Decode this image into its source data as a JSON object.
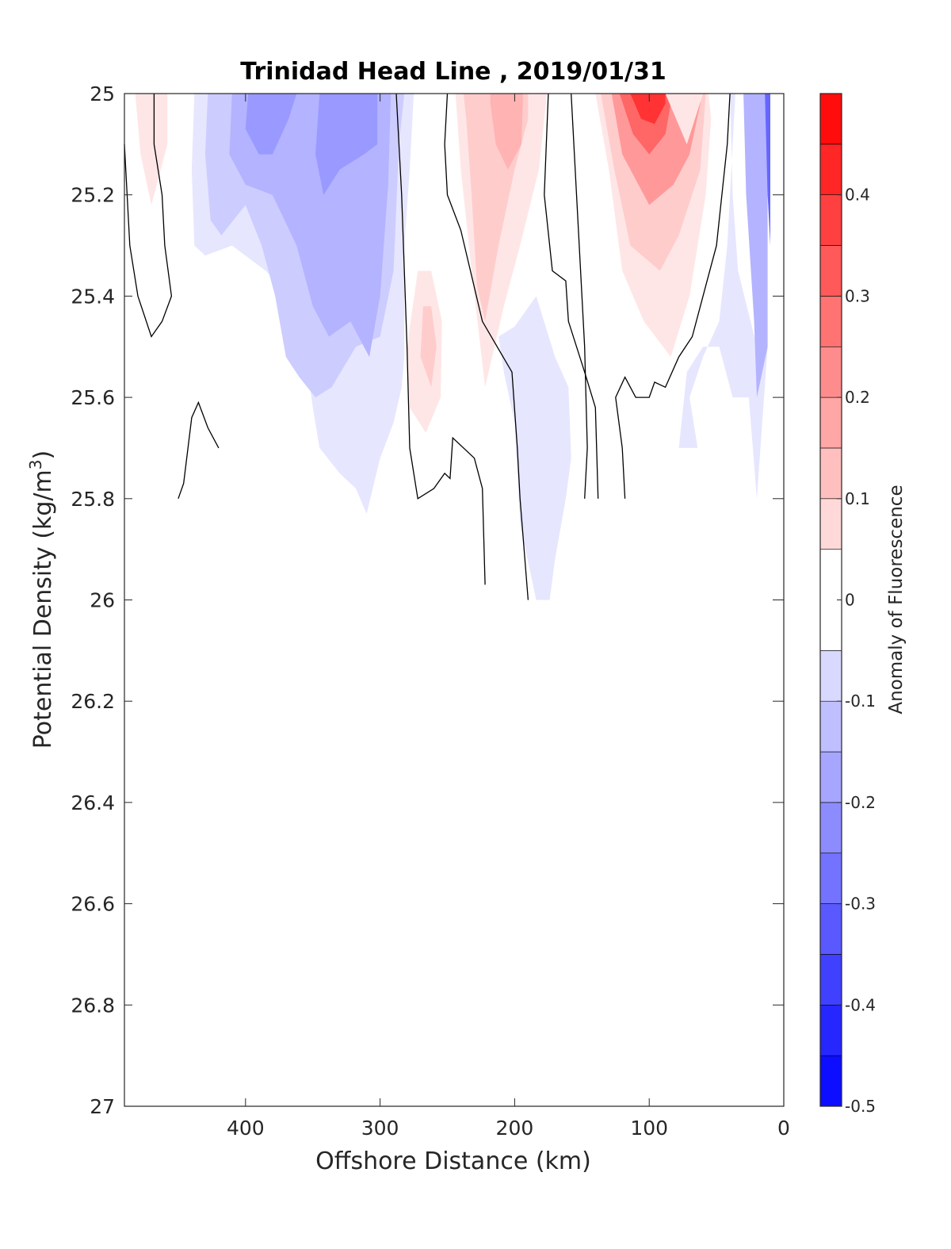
{
  "chart_data": {
    "type": "contourf",
    "title": "Trinidad Head Line , 2019/01/31",
    "xlabel": "Offshore Distance (km)",
    "ylabel_main": "Potential Density (kg/m",
    "ylabel_sup": "3",
    "ylabel_end": ")",
    "x_axis": {
      "ticks": [
        400,
        300,
        200,
        100,
        0
      ],
      "tick_labels": [
        "400",
        "300",
        "200",
        "100",
        "0"
      ],
      "range": [
        490,
        0
      ],
      "reversed": true
    },
    "y_axis": {
      "ticks": [
        25,
        25.2,
        25.4,
        25.6,
        25.8,
        26,
        26.2,
        26.4,
        26.6,
        26.8,
        27
      ],
      "tick_labels": [
        "25",
        "25.2",
        "25.4",
        "25.6",
        "25.8",
        "26",
        "26.2",
        "26.4",
        "26.6",
        "26.8",
        "27"
      ],
      "range": [
        25,
        27
      ],
      "reversed": true
    },
    "colorbar": {
      "label": "Anomaly of Fluorescence",
      "range": [
        -0.5,
        0.5
      ],
      "ticks": [
        0.4,
        0.3,
        0.2,
        0.1,
        0,
        -0.1,
        -0.2,
        -0.3,
        -0.4,
        -0.5
      ],
      "tick_labels": [
        "0.4",
        "0.3",
        "0.2",
        "0.1",
        "0",
        "-0.1",
        "-0.2",
        "-0.3",
        "-0.4",
        "-0.5"
      ],
      "levels": [
        -0.5,
        -0.45,
        -0.4,
        -0.35,
        -0.3,
        -0.25,
        -0.2,
        -0.15,
        -0.1,
        -0.05,
        0.05,
        0.1,
        0.15,
        0.2,
        0.25,
        0.3,
        0.35,
        0.4,
        0.45,
        0.5
      ],
      "colormap": "blue-white-red"
    },
    "filled_regions": [
      {
        "level": 0.05,
        "points": [
          [
            482,
            25
          ],
          [
            458,
            25
          ],
          [
            458,
            25.1
          ],
          [
            470,
            25.22
          ],
          [
            478,
            25.12
          ]
        ]
      },
      {
        "level": -0.05,
        "points": [
          [
            438,
            25
          ],
          [
            440,
            25.15
          ],
          [
            438,
            25.3
          ],
          [
            430,
            25.32
          ],
          [
            410,
            25.3
          ],
          [
            385,
            25.35
          ],
          [
            360,
            25.42
          ],
          [
            350,
            25.62
          ],
          [
            345,
            25.7
          ],
          [
            330,
            25.75
          ],
          [
            318,
            25.78
          ],
          [
            310,
            25.83
          ],
          [
            300,
            25.72
          ],
          [
            290,
            25.65
          ],
          [
            284,
            25.58
          ],
          [
            282,
            25.52
          ],
          [
            282,
            25.3
          ],
          [
            278,
            25.15
          ],
          [
            275,
            25.0
          ]
        ]
      },
      {
        "level": -0.1,
        "points": [
          [
            428,
            25
          ],
          [
            430,
            25.12
          ],
          [
            426,
            25.25
          ],
          [
            418,
            25.28
          ],
          [
            400,
            25.22
          ],
          [
            388,
            25.3
          ],
          [
            378,
            25.4
          ],
          [
            370,
            25.52
          ],
          [
            360,
            25.56
          ],
          [
            348,
            25.6
          ],
          [
            336,
            25.58
          ],
          [
            318,
            25.5
          ],
          [
            300,
            25.48
          ],
          [
            290,
            25.35
          ],
          [
            286,
            25.1
          ],
          [
            282,
            25
          ]
        ]
      },
      {
        "level": -0.15,
        "points": [
          [
            410,
            25
          ],
          [
            412,
            25.12
          ],
          [
            400,
            25.18
          ],
          [
            380,
            25.2
          ],
          [
            362,
            25.3
          ],
          [
            350,
            25.42
          ],
          [
            338,
            25.48
          ],
          [
            322,
            25.45
          ],
          [
            308,
            25.52
          ],
          [
            300,
            25.4
          ],
          [
            294,
            25.18
          ],
          [
            292,
            25
          ]
        ]
      },
      {
        "level": -0.2,
        "points": [
          [
            398,
            25
          ],
          [
            400,
            25.07
          ],
          [
            390,
            25.12
          ],
          [
            380,
            25.12
          ],
          [
            368,
            25.05
          ],
          [
            362,
            25.0
          ]
        ]
      },
      {
        "level": -0.2,
        "points": [
          [
            345,
            25
          ],
          [
            348,
            25.12
          ],
          [
            342,
            25.2
          ],
          [
            330,
            25.15
          ],
          [
            312,
            25.12
          ],
          [
            302,
            25.1
          ],
          [
            302,
            25.0
          ]
        ]
      },
      {
        "level": 0.05,
        "points": [
          [
            272,
            25.35
          ],
          [
            280,
            25.5
          ],
          [
            278,
            25.62
          ],
          [
            266,
            25.67
          ],
          [
            255,
            25.6
          ],
          [
            254,
            25.45
          ],
          [
            262,
            25.35
          ]
        ]
      },
      {
        "level": 0.1,
        "points": [
          [
            268,
            25.42
          ],
          [
            270,
            25.52
          ],
          [
            262,
            25.58
          ],
          [
            258,
            25.5
          ],
          [
            262,
            25.42
          ]
        ]
      },
      {
        "level": 0.05,
        "points": [
          [
            244,
            25
          ],
          [
            240,
            25.15
          ],
          [
            232,
            25.35
          ],
          [
            222,
            25.58
          ],
          [
            208,
            25.42
          ],
          [
            196,
            25.3
          ],
          [
            182,
            25.15
          ],
          [
            176,
            25.0
          ]
        ]
      },
      {
        "level": 0.1,
        "points": [
          [
            236,
            25.05
          ],
          [
            232,
            25.2
          ],
          [
            228,
            25.38
          ],
          [
            222,
            25.45
          ],
          [
            212,
            25.3
          ],
          [
            200,
            25.15
          ],
          [
            190,
            25.05
          ],
          [
            190,
            25.0
          ],
          [
            238,
            25.0
          ]
        ]
      },
      {
        "level": 0.15,
        "points": [
          [
            218,
            25.02
          ],
          [
            214,
            25.1
          ],
          [
            205,
            25.15
          ],
          [
            195,
            25.1
          ],
          [
            194,
            25.02
          ],
          [
            194,
            25.0
          ],
          [
            218,
            25.0
          ]
        ]
      },
      {
        "level": -0.05,
        "points": [
          [
            184,
            25.4
          ],
          [
            170,
            25.52
          ],
          [
            160,
            25.58
          ],
          [
            158,
            25.72
          ],
          [
            162,
            25.8
          ],
          [
            170,
            25.92
          ],
          [
            174,
            26.0
          ],
          [
            184,
            26.0
          ],
          [
            196,
            25.85
          ],
          [
            200,
            25.65
          ],
          [
            208,
            25.55
          ],
          [
            212,
            25.48
          ],
          [
            200,
            25.46
          ]
        ]
      },
      {
        "level": 0.05,
        "points": [
          [
            140,
            25
          ],
          [
            130,
            25.15
          ],
          [
            120,
            25.35
          ],
          [
            104,
            25.45
          ],
          [
            84,
            25.52
          ],
          [
            70,
            25.4
          ],
          [
            58,
            25.2
          ],
          [
            54,
            25.05
          ],
          [
            56,
            25.0
          ]
        ]
      },
      {
        "level": 0.1,
        "points": [
          [
            136,
            25
          ],
          [
            126,
            25.15
          ],
          [
            114,
            25.3
          ],
          [
            92,
            25.35
          ],
          [
            78,
            25.28
          ],
          [
            62,
            25.15
          ],
          [
            58,
            25.0
          ]
        ]
      },
      {
        "level": 0.2,
        "points": [
          [
            128,
            25
          ],
          [
            120,
            25.12
          ],
          [
            100,
            25.22
          ],
          [
            82,
            25.18
          ],
          [
            70,
            25.12
          ],
          [
            62,
            25.02
          ],
          [
            62,
            25.0
          ]
        ]
      },
      {
        "level": 0.3,
        "points": [
          [
            122,
            25
          ],
          [
            112,
            25.08
          ],
          [
            100,
            25.12
          ],
          [
            88,
            25.08
          ],
          [
            84,
            25.02
          ],
          [
            84,
            25.0
          ]
        ]
      },
      {
        "level": 0.4,
        "points": [
          [
            114,
            25
          ],
          [
            106,
            25.05
          ],
          [
            96,
            25.06
          ],
          [
            88,
            25.02
          ],
          [
            88,
            25.0
          ]
        ]
      },
      {
        "level": 0.05,
        "points": [
          [
            88,
            25
          ],
          [
            72,
            25.1
          ],
          [
            60,
            25.0
          ]
        ]
      },
      {
        "level": -0.05,
        "points": [
          [
            40,
            25
          ],
          [
            38,
            25.2
          ],
          [
            34,
            25.35
          ],
          [
            20,
            25.5
          ],
          [
            12,
            25.5
          ],
          [
            20,
            25.8
          ],
          [
            26,
            25.6
          ],
          [
            38,
            25.6
          ],
          [
            48,
            25.5
          ],
          [
            60,
            25.5
          ],
          [
            72,
            25.55
          ],
          [
            78,
            25.7
          ],
          [
            64,
            25.7
          ],
          [
            70,
            25.6
          ],
          [
            60,
            25.52
          ],
          [
            48,
            25.45
          ],
          [
            42,
            25.3
          ],
          [
            36,
            25.0
          ]
        ]
      },
      {
        "level": -0.15,
        "points": [
          [
            30,
            25
          ],
          [
            28,
            25.2
          ],
          [
            22,
            25.45
          ],
          [
            20,
            25.6
          ],
          [
            12,
            25.5
          ],
          [
            12,
            25.0
          ]
        ]
      },
      {
        "level": -0.3,
        "points": [
          [
            14,
            25
          ],
          [
            12,
            25.2
          ],
          [
            10,
            25.3
          ],
          [
            10,
            25.0
          ]
        ]
      }
    ],
    "zero_contours": [
      [
        [
          490,
          25.1
        ],
        [
          486,
          25.3
        ],
        [
          480,
          25.4
        ],
        [
          470,
          25.48
        ],
        [
          462,
          25.45
        ],
        [
          455,
          25.4
        ],
        [
          460,
          25.3
        ],
        [
          462,
          25.2
        ],
        [
          468,
          25.1
        ],
        [
          468,
          25.0
        ]
      ],
      [
        [
          450,
          25.8
        ],
        [
          446,
          25.77
        ],
        [
          440,
          25.64
        ],
        [
          435,
          25.61
        ],
        [
          428,
          25.66
        ],
        [
          420,
          25.7
        ]
      ],
      [
        [
          250,
          25.0
        ],
        [
          252,
          25.1
        ],
        [
          250,
          25.2
        ],
        [
          240,
          25.27
        ],
        [
          224,
          25.45
        ],
        [
          202,
          25.55
        ],
        [
          198,
          25.7
        ],
        [
          196,
          25.8
        ],
        [
          190,
          26.0
        ]
      ],
      [
        [
          175,
          25.0
        ],
        [
          178,
          25.2
        ],
        [
          172,
          25.35
        ],
        [
          162,
          25.37
        ],
        [
          160,
          25.45
        ],
        [
          148,
          25.55
        ],
        [
          140,
          25.62
        ],
        [
          138,
          25.8
        ]
      ],
      [
        [
          158,
          25.0
        ],
        [
          154,
          25.2
        ],
        [
          148,
          25.5
        ],
        [
          146,
          25.7
        ],
        [
          148,
          25.8
        ]
      ],
      [
        [
          118,
          25.8
        ],
        [
          120,
          25.7
        ],
        [
          125,
          25.6
        ],
        [
          118,
          25.56
        ],
        [
          110,
          25.6
        ],
        [
          100,
          25.6
        ],
        [
          96,
          25.57
        ],
        [
          88,
          25.58
        ],
        [
          78,
          25.52
        ],
        [
          68,
          25.48
        ],
        [
          58,
          25.38
        ],
        [
          50,
          25.3
        ],
        [
          46,
          25.2
        ],
        [
          42,
          25.1
        ],
        [
          40,
          25.0
        ]
      ],
      [
        [
          288,
          25.0
        ],
        [
          284,
          25.2
        ],
        [
          280,
          25.5
        ],
        [
          278,
          25.7
        ],
        [
          272,
          25.8
        ],
        [
          260,
          25.78
        ],
        [
          252,
          25.75
        ],
        [
          248,
          25.76
        ],
        [
          246,
          25.68
        ],
        [
          230,
          25.72
        ],
        [
          224,
          25.78
        ],
        [
          222,
          25.97
        ]
      ]
    ]
  }
}
